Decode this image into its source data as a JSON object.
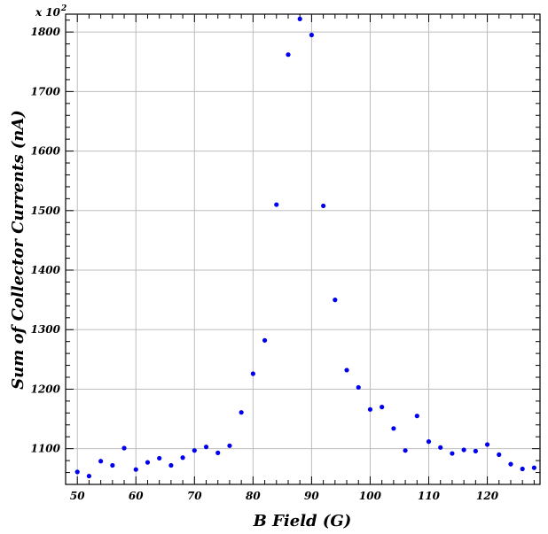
{
  "chart_data": {
    "type": "scatter",
    "title": "",
    "xlabel": "B Field (G)",
    "ylabel": "Sum of Collector Currents (nA)",
    "y_multiplier": "x 10",
    "y_multiplier_exponent": "2",
    "xlim": [
      48,
      129
    ],
    "ylim": [
      1040,
      1830
    ],
    "x_ticks": [
      50,
      60,
      70,
      80,
      90,
      100,
      110,
      120
    ],
    "y_ticks": [
      1100,
      1200,
      1300,
      1400,
      1500,
      1600,
      1700,
      1800
    ],
    "grid": true,
    "marker_color": "#0000ee",
    "series": [
      {
        "x": [
          50,
          52,
          54,
          56,
          58,
          60,
          62,
          64,
          66,
          68,
          70,
          72,
          74,
          76,
          78,
          80,
          82,
          84,
          86,
          88,
          90,
          92,
          94,
          96,
          98,
          100,
          102,
          104,
          106,
          108,
          110,
          112,
          114,
          116,
          118,
          120,
          122,
          124,
          126,
          128
        ],
        "y": [
          1061,
          1054,
          1079,
          1072,
          1101,
          1065,
          1077,
          1084,
          1072,
          1085,
          1097,
          1103,
          1093,
          1105,
          1161,
          1226,
          1282,
          1510,
          1762,
          1822,
          1795,
          1508,
          1350,
          1232,
          1203,
          1166,
          1170,
          1134,
          1097,
          1155,
          1112,
          1102,
          1092,
          1098,
          1096,
          1107,
          1090,
          1074,
          1066,
          1068
        ]
      }
    ]
  }
}
